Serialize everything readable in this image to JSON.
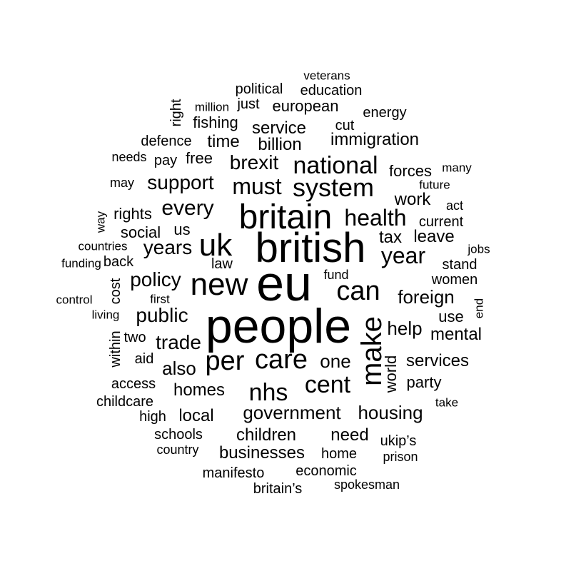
{
  "words": [
    "people",
    "eu",
    "british",
    "britain",
    "new",
    "uk",
    "can",
    "make",
    "per",
    "care",
    "nhs",
    "cent",
    "national",
    "system",
    "health",
    "year",
    "must",
    "brexit",
    "immigration",
    "every",
    "support",
    "government",
    "public",
    "trade",
    "foreign",
    "years",
    "policy",
    "help",
    "one",
    "housing",
    "also",
    "businesses",
    "children",
    "need",
    "homes",
    "local",
    "mental",
    "services",
    "work",
    "tax",
    "leave",
    "service",
    "billion",
    "time",
    "european",
    "education",
    "political",
    "fishing",
    "energy",
    "forces",
    "world",
    "party",
    "social",
    "rights",
    "us",
    "law",
    "fund",
    "women",
    "stand",
    "current",
    "use",
    "economic",
    "manifesto",
    "schools",
    "home",
    "ukip’s",
    "within",
    "cost",
    "aid",
    "two",
    "access",
    "childcare",
    "free",
    "pay",
    "defence",
    "needs",
    "may",
    "back",
    "countries",
    "funding",
    "control",
    "living",
    "first",
    "high",
    "country",
    "britain’s",
    "spokesman",
    "prison",
    "take",
    "jobs",
    "act",
    "future",
    "many",
    "end",
    "cut",
    "just",
    "million",
    "right",
    "veterans",
    "way"
  ]
}
